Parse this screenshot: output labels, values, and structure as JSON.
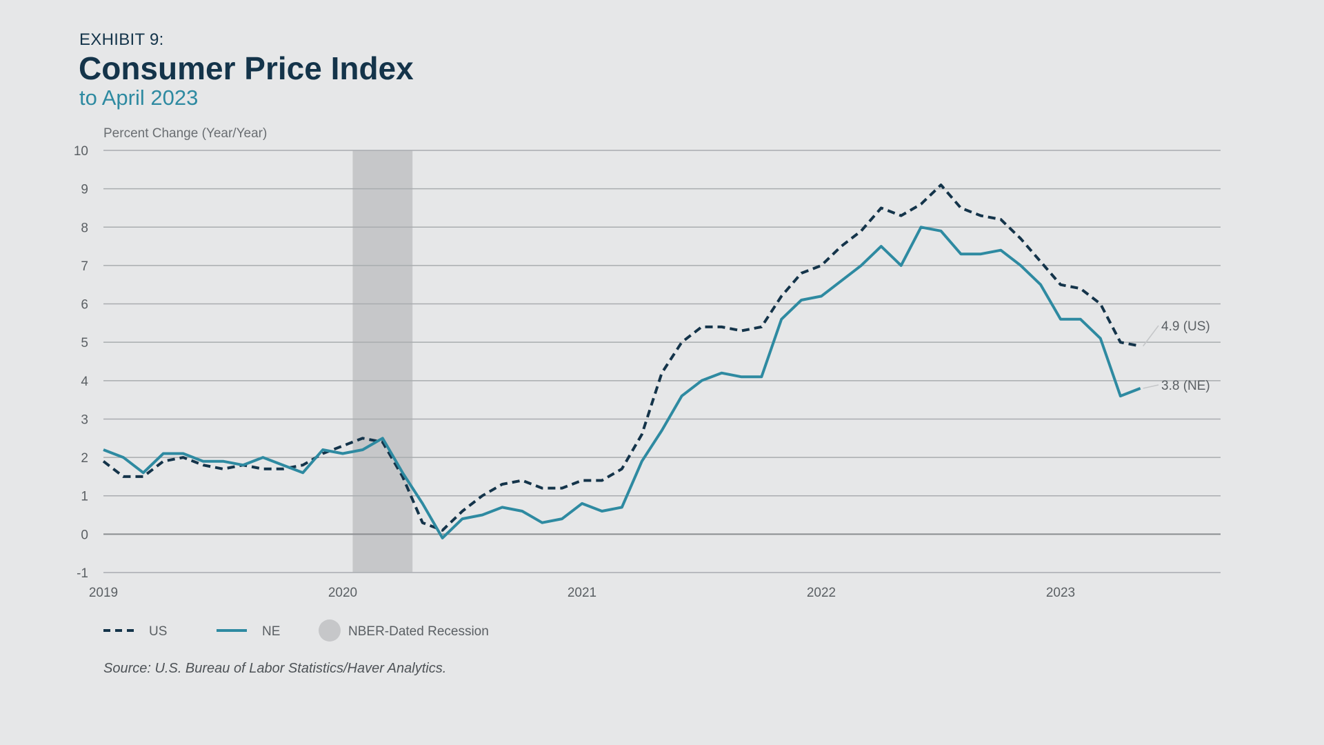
{
  "header": {
    "exhibit": "EXHIBIT 9:",
    "title": "Consumer Price Index",
    "subtitle": "to April 2023"
  },
  "source": "Source: U.S. Bureau of Labor Statistics/Haver Analytics.",
  "chart_data": {
    "type": "line",
    "ylabel": "Percent Change (Year/Year)",
    "ylim": [
      -1,
      10
    ],
    "yticks": [
      -1,
      0,
      1,
      2,
      3,
      4,
      5,
      6,
      7,
      8,
      9,
      10
    ],
    "xticks": [
      "2019",
      "2020",
      "2021",
      "2022",
      "2023"
    ],
    "x_start": "2019-01",
    "grid": true,
    "legend_position": "bottom-left",
    "recession": {
      "label": "NBER-Dated Recession",
      "start": "2020-02",
      "end": "2020-04",
      "color": "#c6c7c9"
    },
    "series": [
      {
        "name": "US",
        "style": "dashed",
        "color": "#14344a",
        "end_label": "4.9 (US)",
        "values": [
          1.9,
          1.5,
          1.5,
          1.9,
          2.0,
          1.8,
          1.7,
          1.8,
          1.7,
          1.7,
          1.8,
          2.1,
          2.3,
          2.5,
          2.4,
          1.5,
          0.3,
          0.1,
          0.6,
          1.0,
          1.3,
          1.4,
          1.2,
          1.2,
          1.4,
          1.4,
          1.7,
          2.6,
          4.2,
          5.0,
          5.4,
          5.4,
          5.3,
          5.4,
          6.2,
          6.8,
          7.0,
          7.5,
          7.9,
          8.5,
          8.3,
          8.6,
          9.1,
          8.5,
          8.3,
          8.2,
          7.7,
          7.1,
          6.5,
          6.4,
          6.0,
          5.0,
          4.9
        ]
      },
      {
        "name": "NE",
        "style": "solid",
        "color": "#2e8aa1",
        "end_label": "3.8 (NE)",
        "values": [
          2.2,
          2.0,
          1.6,
          2.1,
          2.1,
          1.9,
          1.9,
          1.8,
          2.0,
          1.8,
          1.6,
          2.2,
          2.1,
          2.2,
          2.5,
          1.6,
          0.8,
          -0.1,
          0.4,
          0.5,
          0.7,
          0.6,
          0.3,
          0.4,
          0.8,
          0.6,
          0.7,
          1.9,
          2.7,
          3.6,
          4.0,
          4.2,
          4.1,
          4.1,
          5.6,
          6.1,
          6.2,
          6.6,
          7.0,
          7.5,
          7.0,
          8.0,
          7.9,
          7.3,
          7.3,
          7.4,
          7.0,
          6.5,
          5.6,
          5.6,
          5.1,
          3.6,
          3.8
        ]
      }
    ]
  }
}
